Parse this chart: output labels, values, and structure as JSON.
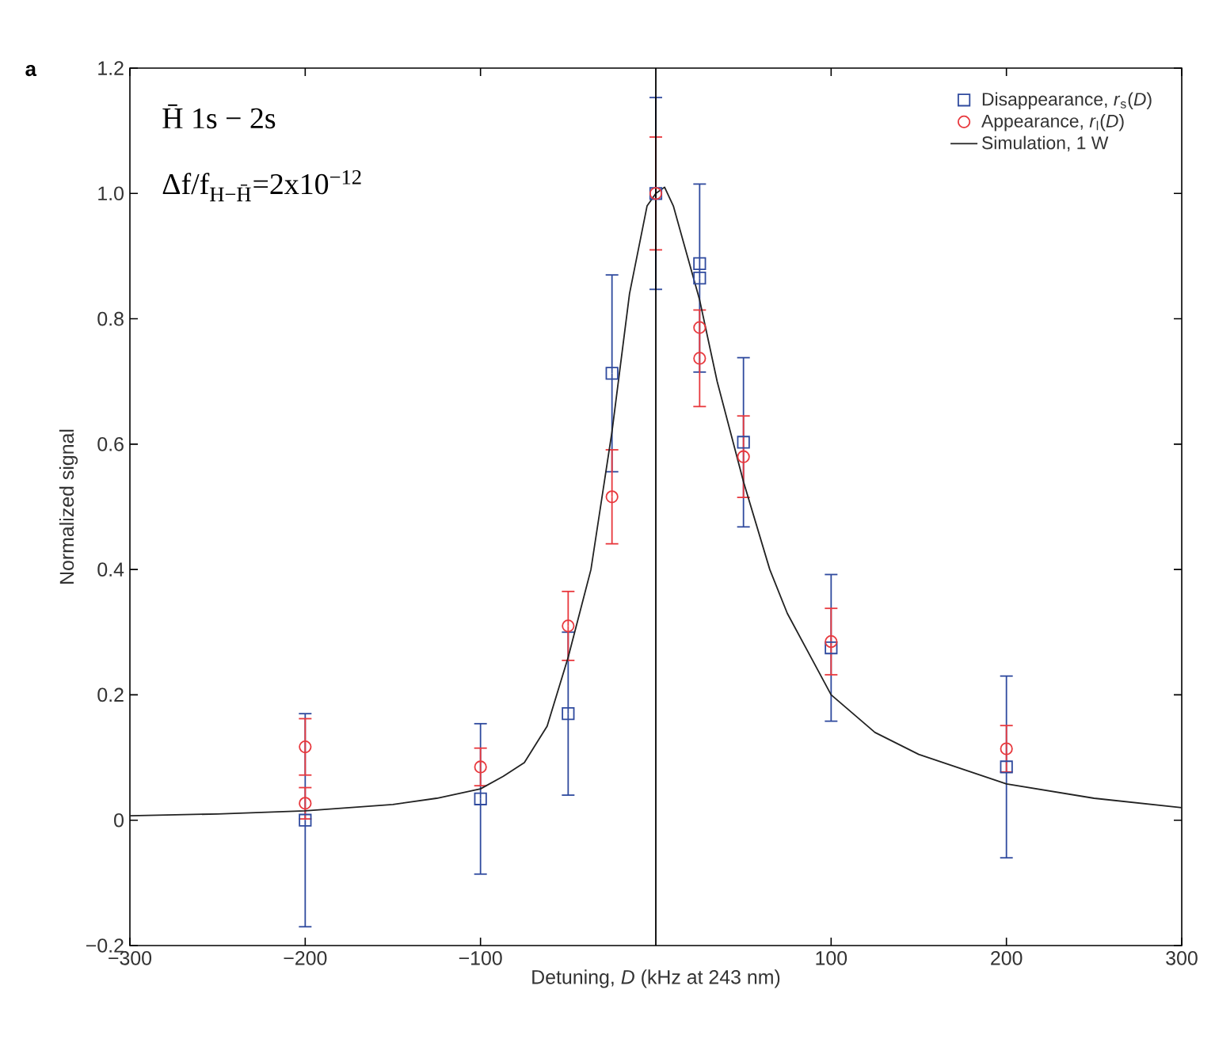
{
  "chart_data": {
    "type": "scatter",
    "xlabel": "Detuning, *D* (kHz at 243 nm)",
    "ylabel": "Normalized signal",
    "annotations": [
      "a",
      "H̄ 1s − 2s",
      "Δf/f$_{H−H̄}$=2x10$^{−12}$"
    ],
    "xlim": [
      -300,
      300
    ],
    "ylim": [
      -0.2,
      1.2
    ],
    "xticks": [
      {
        "value": -300,
        "label": "−300"
      },
      {
        "value": -200,
        "label": "−200"
      },
      {
        "value": -100,
        "label": "−100"
      },
      100,
      200,
      300
    ],
    "yticks": [
      {
        "value": -0.2,
        "label": "−0.2"
      },
      0,
      0.2,
      0.4,
      0.6,
      0.8,
      {
        "value": 1,
        "label": "1.0"
      },
      1.2
    ],
    "legend": "top right",
    "grid": false,
    "ref_lines": [
      {
        "axis": "x",
        "value": 0,
        "color": "#000000"
      }
    ],
    "series": [
      {
        "name": "Disappearance, *r*$_{s}$(*D*)",
        "marker": "square",
        "color": "#2f4a9e",
        "x": [
          -200,
          -100,
          -50,
          -25,
          0,
          25,
          25,
          50,
          100,
          200
        ],
        "values": [
          0,
          0.034,
          0.17,
          0.713,
          1,
          0.888,
          0.865,
          0.603,
          0.275,
          0.085
        ],
        "errors": [
          0.17,
          0.12,
          0.13,
          0.157,
          0.153,
          null,
          0.15,
          0.135,
          0.117,
          0.145
        ]
      },
      {
        "name": "Appearance, *r*$_{l}$(*D*)",
        "marker": "circle",
        "color": "#e8383d",
        "x": [
          -200,
          -200,
          -100,
          -50,
          -25,
          0,
          25,
          25,
          50,
          100,
          200
        ],
        "values": [
          0.117,
          0.027,
          0.085,
          0.31,
          0.516,
          1,
          0.786,
          0.737,
          0.58,
          0.285,
          0.114
        ],
        "errors": [
          0.045,
          0.025,
          0.03,
          0.055,
          0.075,
          0.09,
          null,
          0.077,
          0.065,
          0.053,
          0.037
        ]
      },
      {
        "name": "Simulation, 1 W",
        "type": "line",
        "marker": "none",
        "line_style": "solid",
        "color": "#222222",
        "x": [
          -300,
          -250,
          -200,
          -150,
          -125,
          -100,
          -87,
          -75,
          -62,
          -50,
          -37,
          -25,
          -15,
          -5,
          0,
          5,
          10,
          15,
          25,
          35,
          50,
          65,
          75,
          100,
          125,
          150,
          200,
          250,
          300
        ],
        "values": [
          0.007,
          0.01,
          0.015,
          0.025,
          0.035,
          0.05,
          0.07,
          0.092,
          0.15,
          0.26,
          0.4,
          0.62,
          0.84,
          0.98,
          1.0,
          1.01,
          0.98,
          0.93,
          0.83,
          0.7,
          0.54,
          0.4,
          0.33,
          0.2,
          0.14,
          0.105,
          0.058,
          0.035,
          0.02
        ]
      }
    ]
  }
}
